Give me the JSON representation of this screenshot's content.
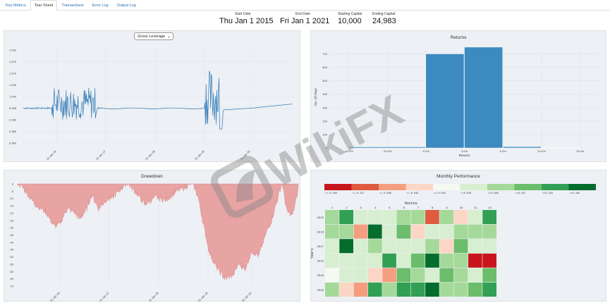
{
  "tabs": [
    {
      "label": "Key Metrics",
      "active": false
    },
    {
      "label": "Tear Sheet",
      "active": true
    },
    {
      "label": "Transactions",
      "active": false
    },
    {
      "label": "Error Log",
      "active": false
    },
    {
      "label": "Output Log",
      "active": false
    }
  ],
  "stats": {
    "start_date": {
      "label": "Start Date",
      "value": "Thu Jan 1 2015"
    },
    "end_date": {
      "label": "End Date",
      "value": "Fri Jan 1 2021"
    },
    "starting_capital": {
      "label": "Starting Capital",
      "value": "10,000"
    },
    "ending_capital": {
      "label": "Ending Capital",
      "value": "24,983"
    }
  },
  "leverage": {
    "selector_value": "Gross Leverage",
    "chart_data": {
      "type": "line",
      "y_ticks": [
        "1.020",
        "1.015",
        "1.010",
        "1.005",
        "1.000",
        "0.995",
        "0.990",
        "0.985",
        "0.980"
      ],
      "x_ticks": [
        "01 Jan 16",
        "01 Jan 17",
        "01 Jan 18",
        "01 Jan 19",
        "01 Jan 20"
      ],
      "color": "#2f7ab8",
      "baseline": 0.995,
      "volatile_periods": [
        "mid 2015 - mid 2016",
        "late 2018 - early 2019"
      ]
    }
  },
  "returns": {
    "title": "Returns",
    "chart_data": {
      "type": "bar",
      "ylabel": "No. Of Days",
      "xlabel": "Returns",
      "y_ticks": [
        "700",
        "600",
        "500",
        "400",
        "300",
        "200",
        "100",
        "0"
      ],
      "x_ticks": [
        "-15.0%",
        "-10.0%",
        "-5.0%",
        "0.0%",
        "5.0%",
        "10.0%",
        "15.0%"
      ],
      "bins": [
        {
          "from": -15,
          "to": -5,
          "value": 8
        },
        {
          "from": -5,
          "to": 0,
          "value": 700
        },
        {
          "from": 0,
          "to": 5,
          "value": 750
        },
        {
          "from": 5,
          "to": 10,
          "value": 10
        },
        {
          "from": 10,
          "to": 15,
          "value": 2
        }
      ],
      "ylim": [
        0,
        760
      ],
      "color": "#3d8ac0"
    }
  },
  "drawdown": {
    "title": "Drawdown",
    "chart_data": {
      "type": "area",
      "y_ticks": [
        "0",
        "-5",
        "-10",
        "-15",
        "-20",
        "-25",
        "-30",
        "-35",
        "-40",
        "-45",
        "-50",
        "-55",
        "-60",
        "-65",
        "-70"
      ],
      "x_ticks": [
        "01 Jan 16",
        "01 Jan 17",
        "01 Jan 18",
        "01 Jan 19",
        "01 Jan 20"
      ],
      "ylim": [
        -70,
        0
      ],
      "color": "#e8a3a3"
    }
  },
  "monthly": {
    "title": "Monthly Performance",
    "legend": [
      "<=-0.166",
      "<=-0.127",
      "<=-0.088",
      "<=-0.049",
      "<=-0.010",
      "<=0.029",
      "<=0.068",
      "<=0.107",
      "<=0.146",
      "<=0.185"
    ],
    "legend_colors": [
      "#c8141c",
      "#e05a3f",
      "#f59d7f",
      "#fbd6c5",
      "#f5f9f1",
      "#d7efd0",
      "#a5d99a",
      "#6bbd6b",
      "#32a054",
      "#046d2e"
    ],
    "chart_data": {
      "type": "heatmap",
      "xlabel": "Months",
      "ylabel": "Years",
      "months": [
        "1",
        "2",
        "3",
        "4",
        "5",
        "6",
        "7",
        "8",
        "9",
        "10",
        "11",
        "12"
      ],
      "years": [
        "2015",
        "2016",
        "2017",
        "2018",
        "2019",
        "2020"
      ],
      "values": [
        [
          0.03,
          0.12,
          0.0,
          0.01,
          0.01,
          0.03,
          0.06,
          -0.16,
          0.06,
          -0.05,
          0.0,
          0.13
        ],
        [
          0.05,
          0.03,
          -0.11,
          0.15,
          0.0,
          0.08,
          -0.08,
          0.02,
          0.0,
          0.04,
          0.03,
          0.06
        ],
        [
          0.01,
          0.16,
          0.02,
          0.03,
          0.0,
          0.0,
          0.01,
          0.04,
          -0.05,
          0.08,
          0.0,
          0.0
        ],
        [
          0.02,
          0.02,
          0.0,
          0.01,
          0.14,
          0.0,
          0.07,
          0.19,
          0.05,
          0.03,
          -0.18,
          -0.17
        ],
        [
          -0.04,
          0.0,
          0.0,
          -0.06,
          -0.12,
          0.1,
          0.03,
          0.01,
          0.07,
          0.04,
          0.0,
          0.1
        ],
        [
          0.06,
          -0.07,
          -0.09,
          0.11,
          0.03,
          0.14,
          0.13,
          0.18,
          0.04,
          0.06,
          0.09,
          0.13
        ]
      ]
    }
  }
}
